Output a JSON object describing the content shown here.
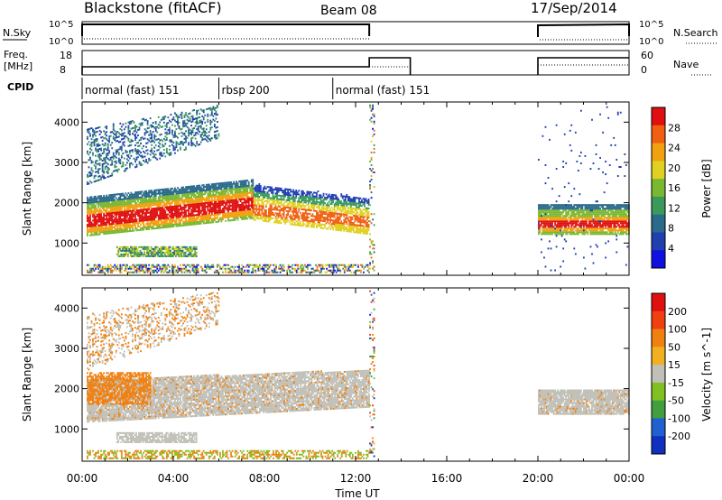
{
  "header": {
    "station": "Blackstone (fitACF)",
    "beam": "Beam 08",
    "date": "17/Sep/2014"
  },
  "noise_panel": {
    "left_label": "N.Sky",
    "left_ticks": [
      "10^5",
      "10^0"
    ],
    "right_ticks": [
      "10^5",
      "10^0"
    ],
    "right_label": "N.Search"
  },
  "freq_panel": {
    "left_label_1": "Freq.",
    "left_label_2": "[MHz]",
    "left_ticks": [
      "18",
      "8"
    ],
    "right_ticks": [
      "60",
      "0"
    ],
    "right_label": "Nave"
  },
  "cpid": {
    "label": "CPID",
    "segments": [
      {
        "name": "normal (fast) 151",
        "start_h": 0,
        "end_h": 6.0
      },
      {
        "name": "rbsp 200",
        "start_h": 6.0,
        "end_h": 11.0
      },
      {
        "name": "normal (fast) 151",
        "start_h": 11.0,
        "end_h": 24
      }
    ]
  },
  "chart_data": [
    {
      "type": "heatmap",
      "ylabel": "Slant Range [km]",
      "xlim": [
        0,
        24
      ],
      "ylim": [
        200,
        4500
      ],
      "yticks": [
        "1000",
        "2000",
        "3000",
        "4000"
      ],
      "colorbar": {
        "label": "Power [dB]",
        "ticks": [
          "4",
          "8",
          "12",
          "16",
          "20",
          "24",
          "28"
        ],
        "colors": [
          "#1010e0",
          "#2040b0",
          "#2a6a8a",
          "#3a9a5a",
          "#7ab830",
          "#e0d020",
          "#f0a010",
          "#f06010",
          "#e01010"
        ]
      },
      "data_gaps_h": [
        [
          12.6,
          20.0
        ]
      ]
    },
    {
      "type": "heatmap",
      "ylabel": "Slant Range [km]",
      "xlim": [
        0,
        24
      ],
      "ylim": [
        200,
        4500
      ],
      "yticks": [
        "1000",
        "2000",
        "3000",
        "4000"
      ],
      "colorbar": {
        "label": "Velocity [m s^-1]",
        "ticks": [
          "200",
          "100",
          "50",
          "15",
          "-15",
          "-50",
          "-100",
          "-200"
        ],
        "colors": [
          "#1030c0",
          "#2060d0",
          "#40a040",
          "#80c020",
          "#c0c0b8",
          "#f0b020",
          "#f08010",
          "#f04010",
          "#e01010"
        ]
      },
      "data_gaps_h": [
        [
          12.6,
          20.0
        ]
      ]
    }
  ],
  "x_axis": {
    "ticks": [
      "00:00",
      "04:00",
      "08:00",
      "12:00",
      "16:00",
      "20:00",
      "00:00"
    ],
    "label": "Time UT"
  }
}
